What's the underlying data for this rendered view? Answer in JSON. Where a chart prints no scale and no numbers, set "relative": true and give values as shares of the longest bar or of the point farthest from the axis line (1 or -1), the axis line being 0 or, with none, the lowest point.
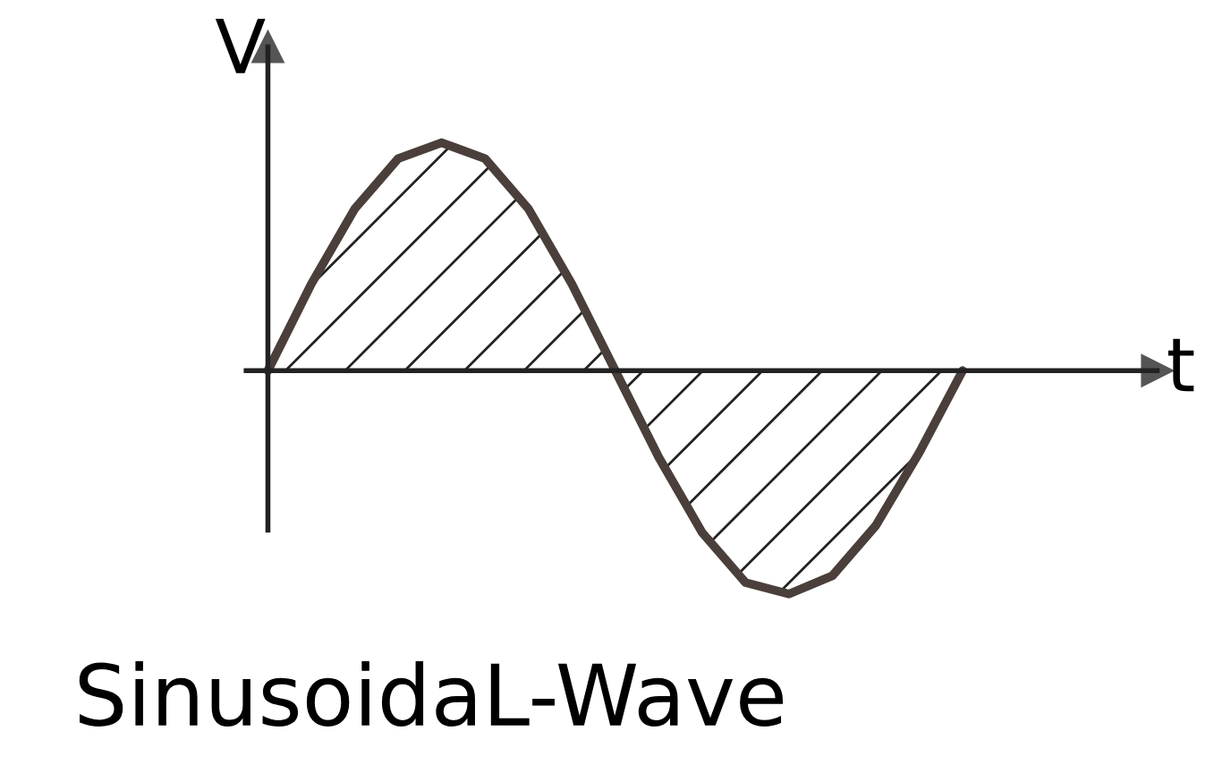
{
  "chart_data": {
    "type": "area",
    "relative": true,
    "title": "SinusoidaL-Wave",
    "xlabel": "t",
    "ylabel": "V",
    "categories": [
      null,
      null,
      null,
      null,
      null,
      null,
      null,
      null,
      null,
      null,
      null,
      null,
      null,
      null,
      null,
      null,
      null
    ],
    "series": [
      {
        "color": "#4a3f3a",
        "values": [
          0,
          0.38,
          0.71,
          0.93,
          1.0,
          0.93,
          0.71,
          0.38,
          0,
          -0.38,
          -0.71,
          -0.93,
          -0.98,
          -0.9,
          -0.68,
          -0.36,
          0
        ]
      }
    ],
    "grid": false,
    "legend": false
  }
}
